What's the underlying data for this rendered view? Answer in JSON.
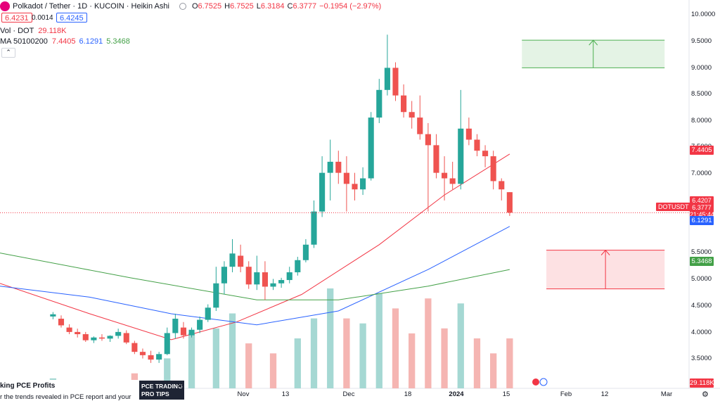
{
  "header": {
    "symbol_title": "Polkadot / Tether · 1D · KUCOIN · Heikin Ashi",
    "ohlc": [
      {
        "key": "O",
        "value": "6.7525"
      },
      {
        "key": "H",
        "value": "6.7525"
      },
      {
        "key": "L",
        "value": "6.3184"
      },
      {
        "key": "C",
        "value": "6.3777"
      }
    ],
    "change": "−0.1954 (−2.97%)",
    "bid": "6.4231",
    "spread": "0.0014",
    "ask": "6.4245"
  },
  "volume_legend": {
    "label": "Vol · DOT",
    "value": "29.118K"
  },
  "ma_legend": {
    "label": "MA 50100200",
    "values": [
      "7.4405",
      "6.1291",
      "5.3468"
    ]
  },
  "collapse_glyph": "⌃",
  "price_axis": {
    "ticks": [
      "10.0000",
      "9.5000",
      "9.0000",
      "8.5000",
      "8.0000",
      "7.5000",
      "7.0000",
      "5.5000",
      "5.0000",
      "4.5000",
      "4.0000",
      "3.5000"
    ],
    "tags": {
      "ma50": "7.4405",
      "prev": "6.4207",
      "last": "6.3777",
      "countdown": "21:45:44",
      "ma100": "6.1291",
      "ma200": "5.3468",
      "volume": "29.118K"
    },
    "symbol_tag": "DOTUSDT"
  },
  "time_axis": {
    "labels": [
      {
        "text": "Nov",
        "bold": false
      },
      {
        "text": "13",
        "bold": false
      },
      {
        "text": "Dec",
        "bold": false
      },
      {
        "text": "18",
        "bold": false
      },
      {
        "text": "2024",
        "bold": true
      },
      {
        "text": "15",
        "bold": false
      },
      {
        "text": "Feb",
        "bold": false
      },
      {
        "text": "12",
        "bold": false
      },
      {
        "text": "Mar",
        "bold": false
      }
    ]
  },
  "news": {
    "title": "king PCE Profits",
    "text": "r the trends revealed in PCE report and your",
    "thumb_line1": "PCE TRADING",
    "thumb_line2": "PRO TIPS",
    "close_glyph": "✕"
  },
  "colors": {
    "up": "#26a69a",
    "down": "#ef5350",
    "ma50": "#f23645",
    "ma100": "#2962ff",
    "ma200": "#43a047",
    "target_up": "#4caf50",
    "target_down": "#f23645"
  },
  "chart_data": {
    "type": "candlestick",
    "style": "Heikin Ashi",
    "interval": "1D",
    "ylim": [
      3.2,
      10.1
    ],
    "x_start": "2023-09-18",
    "x_end": "2024-03-05",
    "grid": false,
    "candles": [
      {
        "date": "2023-10-01",
        "o": 4.5,
        "h": 4.58,
        "l": 4.45,
        "c": 4.54
      },
      {
        "date": "2023-10-03",
        "o": 4.46,
        "h": 4.52,
        "l": 4.3,
        "c": 4.34
      },
      {
        "date": "2023-10-05",
        "o": 4.3,
        "h": 4.36,
        "l": 4.18,
        "c": 4.22
      },
      {
        "date": "2023-10-07",
        "o": 4.22,
        "h": 4.28,
        "l": 4.12,
        "c": 4.18
      },
      {
        "date": "2023-10-09",
        "o": 4.18,
        "h": 4.22,
        "l": 4.04,
        "c": 4.07
      },
      {
        "date": "2023-10-11",
        "o": 4.07,
        "h": 4.14,
        "l": 4.02,
        "c": 4.12
      },
      {
        "date": "2023-10-13",
        "o": 4.12,
        "h": 4.18,
        "l": 4.06,
        "c": 4.1
      },
      {
        "date": "2023-10-15",
        "o": 4.1,
        "h": 4.16,
        "l": 4.04,
        "c": 4.15
      },
      {
        "date": "2023-10-17",
        "o": 4.15,
        "h": 4.28,
        "l": 4.1,
        "c": 4.22
      },
      {
        "date": "2023-10-19",
        "o": 4.2,
        "h": 4.25,
        "l": 4.0,
        "c": 4.03
      },
      {
        "date": "2023-10-21",
        "o": 4.02,
        "h": 4.06,
        "l": 3.82,
        "c": 3.86
      },
      {
        "date": "2023-10-23",
        "o": 3.86,
        "h": 3.92,
        "l": 3.74,
        "c": 3.8
      },
      {
        "date": "2023-10-25",
        "o": 3.8,
        "h": 3.88,
        "l": 3.66,
        "c": 3.72
      },
      {
        "date": "2023-10-27",
        "o": 3.72,
        "h": 3.86,
        "l": 3.66,
        "c": 3.82
      },
      {
        "date": "2023-10-29",
        "o": 3.82,
        "h": 4.3,
        "l": 3.8,
        "c": 4.2
      },
      {
        "date": "2023-10-31",
        "o": 4.2,
        "h": 4.55,
        "l": 4.1,
        "c": 4.46
      },
      {
        "date": "2023-11-02",
        "o": 4.3,
        "h": 4.4,
        "l": 4.1,
        "c": 4.16
      },
      {
        "date": "2023-11-04",
        "o": 4.16,
        "h": 4.3,
        "l": 4.12,
        "c": 4.26
      },
      {
        "date": "2023-11-06",
        "o": 4.26,
        "h": 4.5,
        "l": 4.2,
        "c": 4.44
      },
      {
        "date": "2023-11-08",
        "o": 4.44,
        "h": 4.72,
        "l": 4.4,
        "c": 4.66
      },
      {
        "date": "2023-11-10",
        "o": 4.66,
        "h": 5.4,
        "l": 4.6,
        "c": 5.1
      },
      {
        "date": "2023-11-12",
        "o": 5.1,
        "h": 5.5,
        "l": 4.9,
        "c": 5.4
      },
      {
        "date": "2023-11-14",
        "o": 5.4,
        "h": 5.9,
        "l": 5.3,
        "c": 5.64
      },
      {
        "date": "2023-11-16",
        "o": 5.6,
        "h": 5.8,
        "l": 5.3,
        "c": 5.4
      },
      {
        "date": "2023-11-18",
        "o": 5.4,
        "h": 5.5,
        "l": 5.0,
        "c": 5.08
      },
      {
        "date": "2023-11-20",
        "o": 5.08,
        "h": 5.6,
        "l": 4.98,
        "c": 5.3
      },
      {
        "date": "2023-11-22",
        "o": 5.3,
        "h": 5.5,
        "l": 4.8,
        "c": 5.04
      },
      {
        "date": "2023-11-24",
        "o": 5.04,
        "h": 5.18,
        "l": 4.98,
        "c": 5.1
      },
      {
        "date": "2023-11-26",
        "o": 5.1,
        "h": 5.2,
        "l": 5.02,
        "c": 5.16
      },
      {
        "date": "2023-11-28",
        "o": 5.16,
        "h": 5.4,
        "l": 5.1,
        "c": 5.3
      },
      {
        "date": "2023-11-30",
        "o": 5.3,
        "h": 5.58,
        "l": 5.24,
        "c": 5.52
      },
      {
        "date": "2023-12-02",
        "o": 5.52,
        "h": 5.9,
        "l": 5.48,
        "c": 5.8
      },
      {
        "date": "2023-12-04",
        "o": 5.8,
        "h": 6.6,
        "l": 5.74,
        "c": 6.4
      },
      {
        "date": "2023-12-06",
        "o": 6.4,
        "h": 7.4,
        "l": 6.3,
        "c": 7.1
      },
      {
        "date": "2023-12-08",
        "o": 7.1,
        "h": 7.7,
        "l": 6.6,
        "c": 7.3
      },
      {
        "date": "2023-12-10",
        "o": 7.3,
        "h": 7.5,
        "l": 6.9,
        "c": 7.1
      },
      {
        "date": "2023-12-12",
        "o": 7.1,
        "h": 7.4,
        "l": 6.4,
        "c": 6.9
      },
      {
        "date": "2023-12-14",
        "o": 6.9,
        "h": 7.1,
        "l": 6.6,
        "c": 6.8
      },
      {
        "date": "2023-12-16",
        "o": 6.8,
        "h": 7.2,
        "l": 6.7,
        "c": 7.0
      },
      {
        "date": "2023-12-18",
        "o": 7.0,
        "h": 8.2,
        "l": 6.96,
        "c": 8.1
      },
      {
        "date": "2023-12-20",
        "o": 8.1,
        "h": 8.8,
        "l": 8.0,
        "c": 8.6
      },
      {
        "date": "2023-12-22",
        "o": 8.6,
        "h": 9.6,
        "l": 8.5,
        "c": 9.0
      },
      {
        "date": "2023-12-24",
        "o": 9.0,
        "h": 9.1,
        "l": 8.4,
        "c": 8.5
      },
      {
        "date": "2023-12-26",
        "o": 8.5,
        "h": 8.7,
        "l": 8.1,
        "c": 8.2
      },
      {
        "date": "2023-12-28",
        "o": 8.2,
        "h": 8.4,
        "l": 7.9,
        "c": 8.1
      },
      {
        "date": "2023-12-30",
        "o": 8.1,
        "h": 8.5,
        "l": 7.7,
        "c": 7.8
      },
      {
        "date": "2024-01-01",
        "o": 7.8,
        "h": 8.0,
        "l": 6.4,
        "c": 7.6
      },
      {
        "date": "2024-01-03",
        "o": 7.6,
        "h": 7.8,
        "l": 7.0,
        "c": 7.1
      },
      {
        "date": "2024-01-05",
        "o": 7.1,
        "h": 7.4,
        "l": 6.6,
        "c": 7.0
      },
      {
        "date": "2024-01-07",
        "o": 7.0,
        "h": 7.3,
        "l": 6.8,
        "c": 6.9
      },
      {
        "date": "2024-01-09",
        "o": 6.9,
        "h": 8.6,
        "l": 6.8,
        "c": 7.9
      },
      {
        "date": "2024-01-11",
        "o": 7.9,
        "h": 8.1,
        "l": 7.6,
        "c": 7.7
      },
      {
        "date": "2024-01-13",
        "o": 7.7,
        "h": 7.8,
        "l": 7.4,
        "c": 7.5
      },
      {
        "date": "2024-01-15",
        "o": 7.5,
        "h": 7.6,
        "l": 7.2,
        "c": 7.4
      },
      {
        "date": "2024-01-17",
        "o": 7.4,
        "h": 7.5,
        "l": 6.8,
        "c": 6.95
      },
      {
        "date": "2024-01-19",
        "o": 6.95,
        "h": 7.0,
        "l": 6.6,
        "c": 6.8
      },
      {
        "date": "2024-01-21",
        "o": 6.75,
        "h": 6.75,
        "l": 6.32,
        "c": 6.38
      }
    ],
    "volume": [
      {
        "date": "2023-10-01",
        "v": 0.1,
        "up": true
      },
      {
        "date": "2023-10-21",
        "v": 0.15,
        "up": false
      },
      {
        "date": "2023-10-29",
        "v": 0.3,
        "up": true
      },
      {
        "date": "2023-11-04",
        "v": 0.55,
        "up": true
      },
      {
        "date": "2023-11-10",
        "v": 0.6,
        "up": true
      },
      {
        "date": "2023-11-14",
        "v": 0.75,
        "up": true
      },
      {
        "date": "2023-11-18",
        "v": 0.45,
        "up": false
      },
      {
        "date": "2023-11-24",
        "v": 0.35,
        "up": false
      },
      {
        "date": "2023-11-30",
        "v": 0.5,
        "up": true
      },
      {
        "date": "2023-12-04",
        "v": 0.7,
        "up": true
      },
      {
        "date": "2023-12-08",
        "v": 1.0,
        "up": true
      },
      {
        "date": "2023-12-12",
        "v": 0.7,
        "up": false
      },
      {
        "date": "2023-12-16",
        "v": 0.65,
        "up": true
      },
      {
        "date": "2023-12-20",
        "v": 0.95,
        "up": true
      },
      {
        "date": "2023-12-24",
        "v": 0.8,
        "up": false
      },
      {
        "date": "2023-12-28",
        "v": 0.55,
        "up": false
      },
      {
        "date": "2024-01-01",
        "v": 0.9,
        "up": false
      },
      {
        "date": "2024-01-05",
        "v": 0.6,
        "up": false
      },
      {
        "date": "2024-01-09",
        "v": 0.85,
        "up": true
      },
      {
        "date": "2024-01-13",
        "v": 0.5,
        "up": false
      },
      {
        "date": "2024-01-17",
        "v": 0.35,
        "up": false
      },
      {
        "date": "2024-01-21",
        "v": 0.5,
        "up": false
      }
    ],
    "moving_averages": [
      {
        "name": "MA 50",
        "color": "#f23645",
        "points": [
          {
            "date": "2023-09-18",
            "y": 5.1
          },
          {
            "date": "2023-10-10",
            "y": 4.55
          },
          {
            "date": "2023-10-30",
            "y": 4.08
          },
          {
            "date": "2023-11-15",
            "y": 4.4
          },
          {
            "date": "2023-12-01",
            "y": 4.9
          },
          {
            "date": "2023-12-20",
            "y": 5.8
          },
          {
            "date": "2024-01-05",
            "y": 6.7
          },
          {
            "date": "2024-01-21",
            "y": 7.44
          }
        ]
      },
      {
        "name": "MA 100",
        "color": "#2962ff",
        "points": [
          {
            "date": "2023-09-18",
            "y": 5.05
          },
          {
            "date": "2023-10-10",
            "y": 4.85
          },
          {
            "date": "2023-10-30",
            "y": 4.55
          },
          {
            "date": "2023-11-20",
            "y": 4.35
          },
          {
            "date": "2023-12-10",
            "y": 4.6
          },
          {
            "date": "2024-01-01",
            "y": 5.35
          },
          {
            "date": "2024-01-21",
            "y": 6.13
          }
        ]
      },
      {
        "name": "MA 200",
        "color": "#43a047",
        "points": [
          {
            "date": "2023-09-18",
            "y": 5.65
          },
          {
            "date": "2023-10-20",
            "y": 5.2
          },
          {
            "date": "2023-11-20",
            "y": 4.8
          },
          {
            "date": "2023-12-10",
            "y": 4.8
          },
          {
            "date": "2024-01-01",
            "y": 5.05
          },
          {
            "date": "2024-01-21",
            "y": 5.35
          }
        ]
      }
    ],
    "target_zones": [
      {
        "kind": "long-target",
        "from_date": "2024-01-24",
        "to_date": "2024-02-28",
        "y_bottom": 9.0,
        "y_top": 9.5,
        "arrow": "up"
      },
      {
        "kind": "support-zone",
        "from_date": "2024-01-30",
        "to_date": "2024-02-28",
        "y_bottom": 5.0,
        "y_top": 5.7,
        "arrow": "up"
      }
    ],
    "last_price": 6.3777
  }
}
